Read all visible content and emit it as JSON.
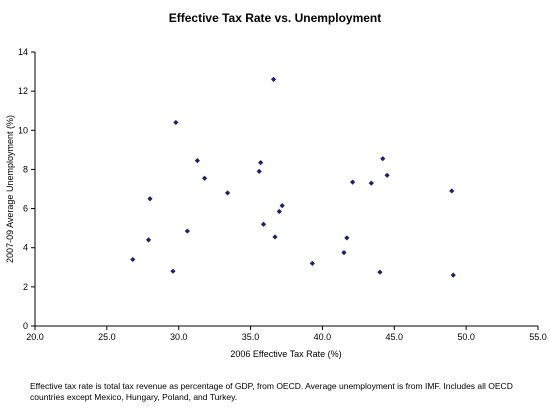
{
  "chart_data": {
    "type": "scatter",
    "title": "Effective Tax Rate vs. Unemployment",
    "xlabel": "2006 Effective Tax Rate (%)",
    "ylabel": "2007-09 Average Unemployment (%)",
    "xlim": [
      20,
      55
    ],
    "ylim": [
      0,
      14
    ],
    "x_ticks": [
      20,
      25,
      30,
      35,
      40,
      45,
      50,
      55
    ],
    "y_ticks": [
      0,
      2,
      4,
      6,
      8,
      10,
      12,
      14
    ],
    "x_tick_labels": [
      "20.0",
      "25.0",
      "30.0",
      "35.0",
      "40.0",
      "45.0",
      "50.0",
      "55.0"
    ],
    "y_tick_labels": [
      "0",
      "2",
      "4",
      "6",
      "8",
      "10",
      "12",
      "14"
    ],
    "grid": false,
    "marker_color": "#1f1f6e",
    "points": [
      {
        "x": 26.8,
        "y": 3.4
      },
      {
        "x": 27.9,
        "y": 4.4
      },
      {
        "x": 28.0,
        "y": 6.5
      },
      {
        "x": 29.6,
        "y": 2.8
      },
      {
        "x": 29.8,
        "y": 10.4
      },
      {
        "x": 30.6,
        "y": 4.85
      },
      {
        "x": 31.3,
        "y": 8.45
      },
      {
        "x": 31.8,
        "y": 7.55
      },
      {
        "x": 33.4,
        "y": 6.8
      },
      {
        "x": 35.6,
        "y": 7.9
      },
      {
        "x": 35.7,
        "y": 8.35
      },
      {
        "x": 35.9,
        "y": 5.2
      },
      {
        "x": 36.6,
        "y": 12.6
      },
      {
        "x": 36.7,
        "y": 4.55
      },
      {
        "x": 37.0,
        "y": 5.85
      },
      {
        "x": 37.2,
        "y": 6.15
      },
      {
        "x": 39.3,
        "y": 3.2
      },
      {
        "x": 41.5,
        "y": 3.75
      },
      {
        "x": 41.7,
        "y": 4.5
      },
      {
        "x": 42.1,
        "y": 7.35
      },
      {
        "x": 43.4,
        "y": 7.3
      },
      {
        "x": 44.0,
        "y": 2.75
      },
      {
        "x": 44.2,
        "y": 8.55
      },
      {
        "x": 44.5,
        "y": 7.7
      },
      {
        "x": 49.0,
        "y": 6.9
      },
      {
        "x": 49.1,
        "y": 2.6
      }
    ]
  },
  "footnote": "Effective tax rate is total tax revenue as percentage of GDP, from OECD. Average unemployment is from IMF. Includes all OECD countries except Mexico, Hungary, Poland, and Turkey."
}
